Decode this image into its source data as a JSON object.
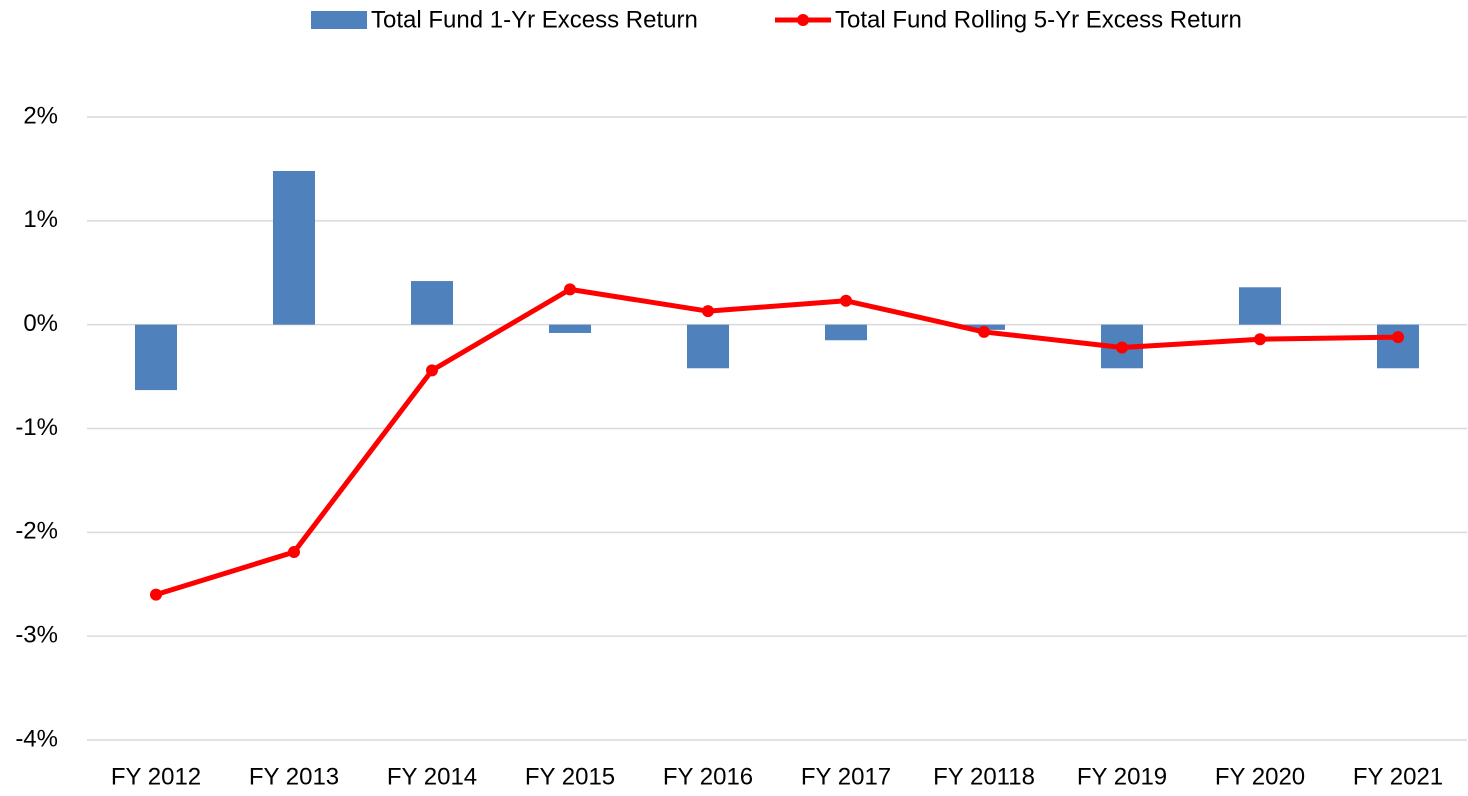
{
  "chart_data": {
    "type": "bar",
    "categories": [
      "FY 2012",
      "FY 2013",
      "FY 2014",
      "FY 2015",
      "FY 2016",
      "FY 2017",
      "FY 20118",
      "FY 2019",
      "FY 2020",
      "FY 2021"
    ],
    "series": [
      {
        "name": "Total Fund 1-Yr Excess Return",
        "type": "bar",
        "color": "#4f81bd",
        "values": [
          -0.63,
          1.48,
          0.42,
          -0.08,
          -0.42,
          -0.15,
          -0.05,
          -0.42,
          0.36,
          -0.42
        ]
      },
      {
        "name": "Total Fund Rolling 5-Yr Excess Return",
        "type": "line",
        "color": "#ff0000",
        "values": [
          -2.6,
          -2.19,
          -0.44,
          0.34,
          0.13,
          0.23,
          -0.07,
          -0.22,
          -0.14,
          -0.12
        ]
      }
    ],
    "ylim": [
      -4,
      2
    ],
    "yticks": [
      {
        "value": -4,
        "label": "-4%"
      },
      {
        "value": -3,
        "label": "-3%"
      },
      {
        "value": -2,
        "label": "-2%"
      },
      {
        "value": -1,
        "label": "-1%"
      },
      {
        "value": 0,
        "label": "0%"
      },
      {
        "value": 1,
        "label": "1%"
      },
      {
        "value": 2,
        "label": "2%"
      }
    ],
    "grid": true,
    "legend": "top"
  }
}
